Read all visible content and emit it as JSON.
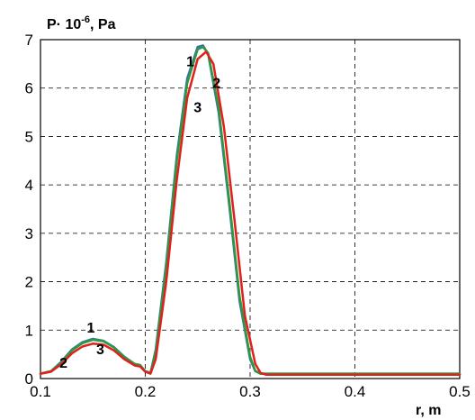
{
  "chart_data": {
    "type": "line",
    "ylabel_prefix": "P· 10",
    "ylabel_exp": "-6",
    "ylabel_suffix": ", Pa",
    "xlabel_main": "r, m",
    "xlabel_sup": "",
    "xlim": [
      0.1,
      0.5
    ],
    "ylim": [
      0,
      7
    ],
    "xticks": [
      0.1,
      0.2,
      0.3,
      0.4,
      0.5
    ],
    "yticks": [
      0,
      1,
      2,
      3,
      4,
      5,
      6,
      7
    ],
    "xtick_labels": [
      "0.1",
      "0.2",
      "0.3",
      "0.4",
      "0.5"
    ],
    "ytick_labels": [
      "0",
      "1",
      "2",
      "3",
      "4",
      "5",
      "6",
      "7"
    ],
    "grid": true,
    "series": [
      {
        "label": "1",
        "color": "#3a6fb0",
        "x": [
          0.1,
          0.11,
          0.12,
          0.13,
          0.14,
          0.15,
          0.16,
          0.17,
          0.18,
          0.19,
          0.195,
          0.2,
          0.205,
          0.21,
          0.22,
          0.23,
          0.24,
          0.25,
          0.255,
          0.26,
          0.27,
          0.28,
          0.29,
          0.3,
          0.305,
          0.31,
          0.4,
          0.5
        ],
        "y": [
          0.1,
          0.15,
          0.35,
          0.6,
          0.75,
          0.82,
          0.78,
          0.65,
          0.45,
          0.3,
          0.28,
          0.15,
          0.12,
          0.6,
          2.4,
          4.6,
          6.2,
          6.85,
          6.88,
          6.7,
          5.5,
          3.6,
          1.6,
          0.4,
          0.15,
          0.1,
          0.1,
          0.1
        ]
      },
      {
        "label": "",
        "color": "#2e9a3e",
        "x": [
          0.1,
          0.11,
          0.12,
          0.13,
          0.14,
          0.15,
          0.16,
          0.17,
          0.18,
          0.19,
          0.195,
          0.2,
          0.205,
          0.21,
          0.22,
          0.23,
          0.24,
          0.25,
          0.255,
          0.26,
          0.27,
          0.28,
          0.29,
          0.3,
          0.305,
          0.31,
          0.4,
          0.5
        ],
        "y": [
          0.1,
          0.15,
          0.33,
          0.58,
          0.73,
          0.8,
          0.77,
          0.64,
          0.44,
          0.3,
          0.28,
          0.15,
          0.12,
          0.55,
          2.3,
          4.5,
          6.1,
          6.8,
          6.85,
          6.72,
          5.6,
          3.7,
          1.7,
          0.45,
          0.16,
          0.1,
          0.1,
          0.1
        ]
      },
      {
        "label": "2",
        "color": "#e0201c",
        "x": [
          0.1,
          0.11,
          0.12,
          0.13,
          0.14,
          0.15,
          0.16,
          0.17,
          0.18,
          0.19,
          0.195,
          0.2,
          0.205,
          0.21,
          0.22,
          0.23,
          0.24,
          0.25,
          0.258,
          0.265,
          0.275,
          0.285,
          0.295,
          0.305,
          0.31,
          0.315,
          0.4,
          0.5
        ],
        "y": [
          0.1,
          0.14,
          0.3,
          0.52,
          0.66,
          0.72,
          0.7,
          0.58,
          0.4,
          0.27,
          0.25,
          0.14,
          0.1,
          0.4,
          2.0,
          4.1,
          5.8,
          6.6,
          6.75,
          6.5,
          5.2,
          3.3,
          1.3,
          0.3,
          0.12,
          0.08,
          0.08,
          0.08
        ]
      }
    ],
    "annotations": [
      {
        "text": "1",
        "x": 0.243,
        "y": 6.45
      },
      {
        "text": "2",
        "x": 0.268,
        "y": 6.0
      },
      {
        "text": "3",
        "x": 0.25,
        "y": 5.5
      },
      {
        "text": "1",
        "x": 0.148,
        "y": 0.95
      },
      {
        "text": "2",
        "x": 0.122,
        "y": 0.22
      },
      {
        "text": "3",
        "x": 0.157,
        "y": 0.5
      }
    ]
  }
}
